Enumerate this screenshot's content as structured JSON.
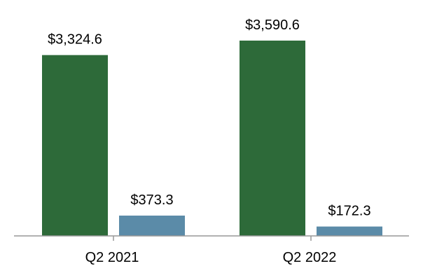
{
  "chart_data": {
    "type": "bar",
    "categories": [
      "Q2 2021",
      "Q2 2022"
    ],
    "series": [
      {
        "values": [
          3324.6,
          3590.6
        ],
        "labels": [
          "$3,324.6",
          "$3,590.6"
        ],
        "color": "#2d6a39"
      },
      {
        "values": [
          373.3,
          172.3
        ],
        "labels": [
          "$373.3",
          "$172.3"
        ],
        "color": "#5b8ba8"
      }
    ],
    "title": "",
    "xlabel": "",
    "ylabel": "",
    "ylim": [
      0,
      3590.6
    ],
    "grid": false,
    "legend": "none",
    "axis_color": "#999999"
  }
}
